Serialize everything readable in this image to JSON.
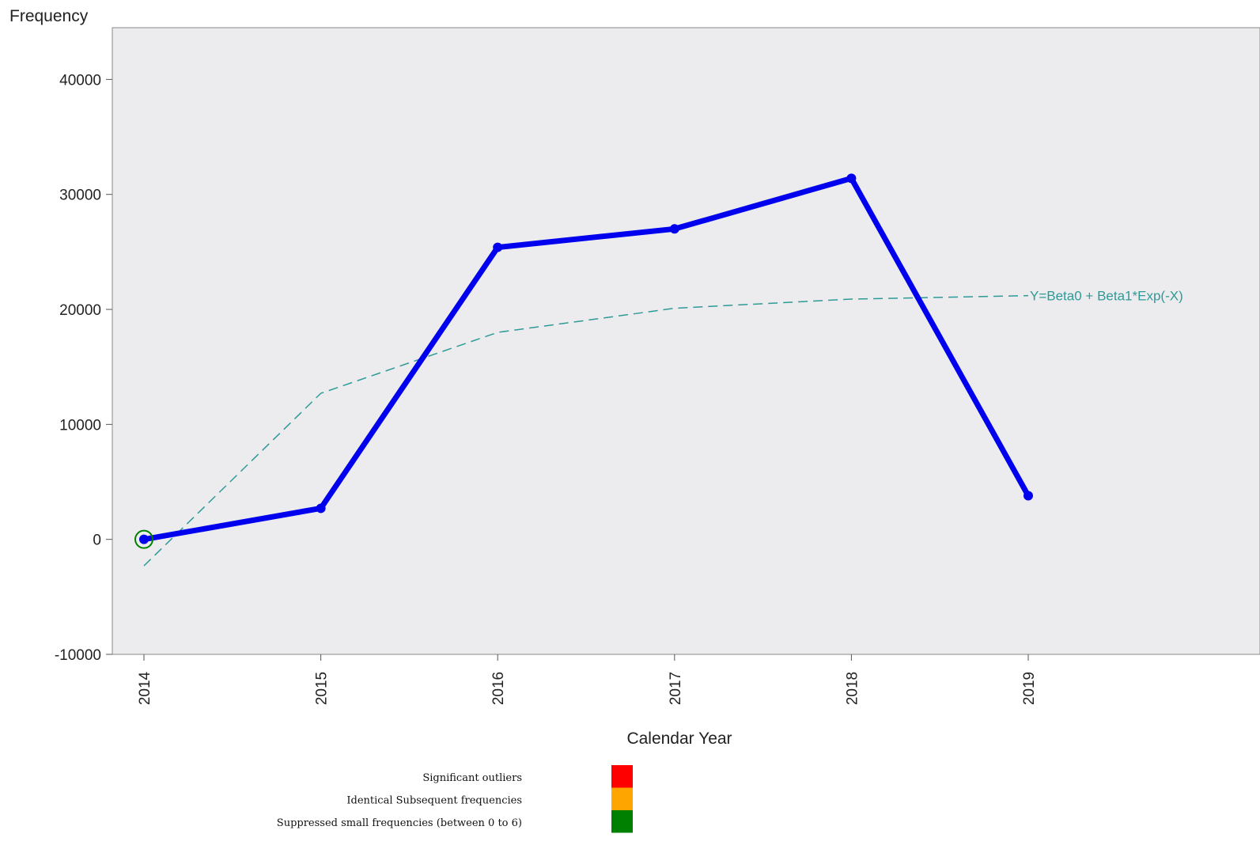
{
  "chart_data": {
    "type": "line",
    "ylabel": "Frequency",
    "xlabel": "Calendar Year",
    "categories": [
      "2014",
      "2015",
      "2016",
      "2017",
      "2018",
      "2019"
    ],
    "ylim": [
      -10000,
      44500
    ],
    "yticks": [
      -10000,
      0,
      10000,
      20000,
      30000,
      40000
    ],
    "grid": false,
    "series": [
      {
        "values": [
          0,
          2700,
          25400,
          27000,
          31400,
          3800
        ],
        "color": "#0000ee"
      },
      {
        "name": "Y=Beta0 + Beta1*Exp(-X)",
        "values": [
          -2300,
          12700,
          18000,
          20100,
          20900,
          21200
        ],
        "color": "#2e9a97",
        "style": "dashed"
      }
    ],
    "highlighted_points": [
      {
        "x": "2014",
        "category": "Suppressed small frequencies (between 0 to 6)"
      }
    ],
    "legend": {
      "placement": "bottom",
      "entries": [
        {
          "label": "Significant outliers",
          "color": "#ff0000"
        },
        {
          "label": "Identical Subsequent frequencies",
          "color": "#ffa500"
        },
        {
          "label": "Suppressed small frequencies (between 0 to 6)",
          "color": "#008000"
        }
      ]
    },
    "plot_background": "#ececee"
  }
}
